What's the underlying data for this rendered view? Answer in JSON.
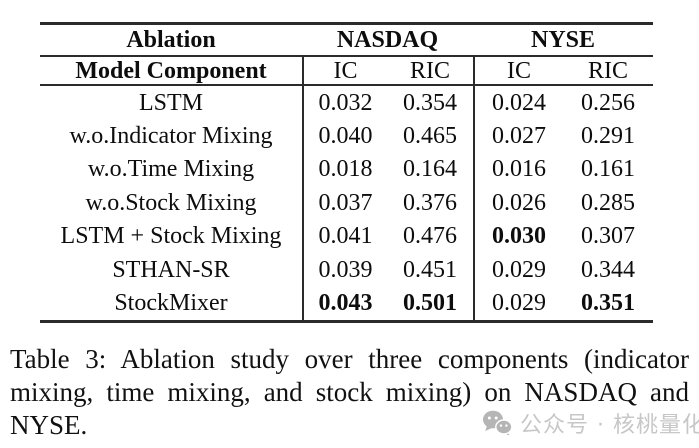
{
  "table": {
    "header_row_1": {
      "ablation": "Ablation",
      "nasdaq": "NASDAQ",
      "nyse": "NYSE"
    },
    "header_row_2": {
      "model_component": "Model Component",
      "nasdaq_ic": "IC",
      "nasdaq_ric": "RIC",
      "nyse_ic": "IC",
      "nyse_ric": "RIC"
    },
    "rows": [
      {
        "label": "LSTM",
        "values": [
          {
            "text": "0.032",
            "bold": false
          },
          {
            "text": "0.354",
            "bold": false
          },
          {
            "text": "0.024",
            "bold": false
          },
          {
            "text": "0.256",
            "bold": false
          }
        ]
      },
      {
        "label": "w.o.Indicator Mixing",
        "values": [
          {
            "text": "0.040",
            "bold": false
          },
          {
            "text": "0.465",
            "bold": false
          },
          {
            "text": "0.027",
            "bold": false
          },
          {
            "text": "0.291",
            "bold": false
          }
        ]
      },
      {
        "label": "w.o.Time Mixing",
        "values": [
          {
            "text": "0.018",
            "bold": false
          },
          {
            "text": "0.164",
            "bold": false
          },
          {
            "text": "0.016",
            "bold": false
          },
          {
            "text": "0.161",
            "bold": false
          }
        ]
      },
      {
        "label": "w.o.Stock Mixing",
        "values": [
          {
            "text": "0.037",
            "bold": false
          },
          {
            "text": "0.376",
            "bold": false
          },
          {
            "text": "0.026",
            "bold": false
          },
          {
            "text": "0.285",
            "bold": false
          }
        ]
      },
      {
        "label": "LSTM + Stock Mixing",
        "values": [
          {
            "text": "0.041",
            "bold": false
          },
          {
            "text": "0.476",
            "bold": false
          },
          {
            "text": "0.030",
            "bold": true
          },
          {
            "text": "0.307",
            "bold": false
          }
        ]
      },
      {
        "label": "STHAN-SR",
        "values": [
          {
            "text": "0.039",
            "bold": false
          },
          {
            "text": "0.451",
            "bold": false
          },
          {
            "text": "0.029",
            "bold": false
          },
          {
            "text": "0.344",
            "bold": false
          }
        ]
      },
      {
        "label": "StockMixer",
        "values": [
          {
            "text": "0.043",
            "bold": true
          },
          {
            "text": "0.501",
            "bold": true
          },
          {
            "text": "0.029",
            "bold": false
          },
          {
            "text": "0.351",
            "bold": true
          }
        ]
      }
    ]
  },
  "caption": {
    "lines": [
      "Table 3: Ablation study over three components (indicator",
      "mixing, time mixing, and stock mixing) on NASDAQ and",
      "NYSE."
    ]
  },
  "watermark": {
    "icon": "wechat-icon",
    "text": "公众号 · 核桃量化",
    "color": "#c7c7c7"
  },
  "colors": {
    "background": "#ffffff",
    "text": "#0d0d0d",
    "rule": "#2b2b2b"
  }
}
